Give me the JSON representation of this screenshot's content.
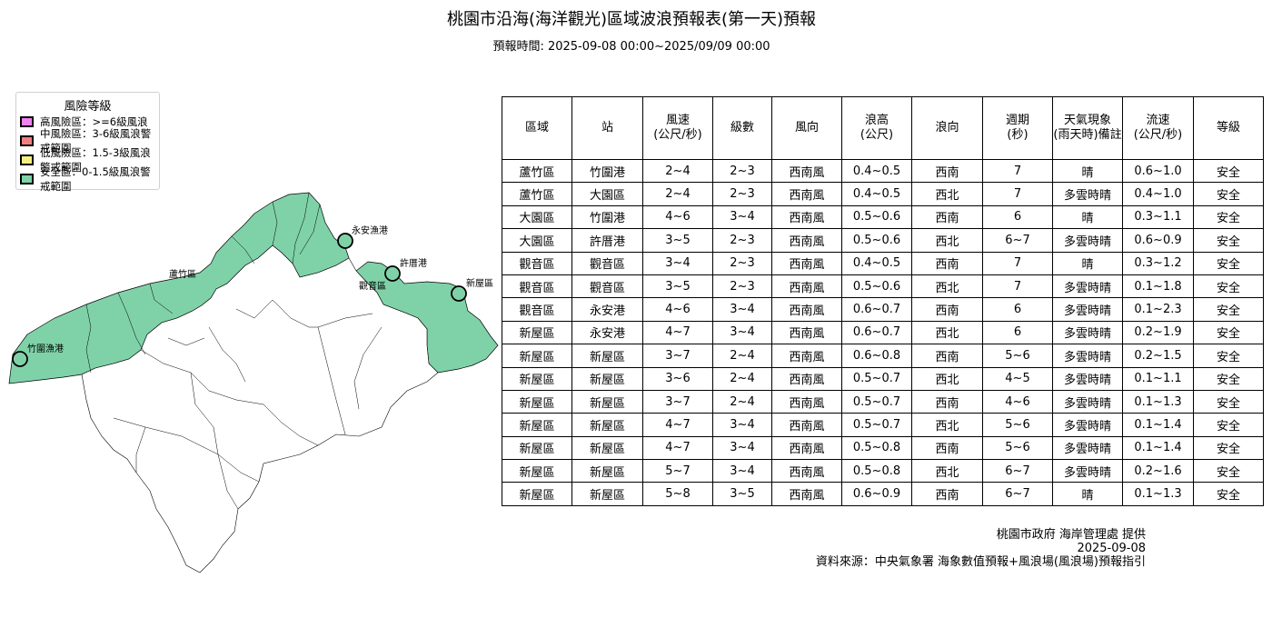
{
  "title": "桃園市沿海(海洋觀光)區域波浪預報表(第一天)預報",
  "subtitle": "預報時間: 2025-09-08 00:00~2025/09/09 00:00",
  "legend": {
    "title": "風險等級",
    "items": [
      {
        "label": "高風險區：>=6級風浪",
        "color": "#ee82ee"
      },
      {
        "label": "中風險區：3-6級風浪警戒範圍",
        "color": "#f08080"
      },
      {
        "label": "低風險區：1.5-3級風浪警戒範圍",
        "color": "#f5ef82"
      },
      {
        "label": "安全區：0-1.5級風浪警戒範圍",
        "color": "#7fd2a8"
      }
    ]
  },
  "map": {
    "region_fill": "#7fd2a8",
    "labels": [
      "竹圍漁港",
      "永安漁港",
      "許厝港",
      "新屋區",
      "觀音區",
      "蘆竹區"
    ]
  },
  "table": {
    "headers": [
      "區域",
      "站",
      "風速\n(公尺/秒)",
      "級數",
      "風向",
      "浪高\n(公尺)",
      "浪向",
      "週期\n(秒)",
      "天氣現象\n(雨天時)備註",
      "流速\n(公尺/秒)",
      "等級"
    ],
    "rows": [
      [
        "蘆竹區",
        "竹圍港",
        "2~4",
        "2~3",
        "西南風",
        "0.4~0.5",
        "西南",
        "7",
        "晴",
        "0.6~1.0",
        "安全"
      ],
      [
        "蘆竹區",
        "大園區",
        "2~4",
        "2~3",
        "西南風",
        "0.4~0.5",
        "西北",
        "7",
        "多雲時晴",
        "0.4~1.0",
        "安全"
      ],
      [
        "大園區",
        "竹圍港",
        "4~6",
        "3~4",
        "西南風",
        "0.5~0.6",
        "西南",
        "6",
        "晴",
        "0.3~1.1",
        "安全"
      ],
      [
        "大園區",
        "許厝港",
        "3~5",
        "2~3",
        "西南風",
        "0.5~0.6",
        "西北",
        "6~7",
        "多雲時晴",
        "0.6~0.9",
        "安全"
      ],
      [
        "觀音區",
        "觀音區",
        "3~4",
        "2~3",
        "西南風",
        "0.4~0.5",
        "西南",
        "7",
        "晴",
        "0.3~1.2",
        "安全"
      ],
      [
        "觀音區",
        "觀音區",
        "3~5",
        "2~3",
        "西南風",
        "0.5~0.6",
        "西北",
        "7",
        "多雲時晴",
        "0.1~1.8",
        "安全"
      ],
      [
        "觀音區",
        "永安港",
        "4~6",
        "3~4",
        "西南風",
        "0.6~0.7",
        "西南",
        "6",
        "多雲時晴",
        "0.1~2.3",
        "安全"
      ],
      [
        "新屋區",
        "永安港",
        "4~7",
        "3~4",
        "西南風",
        "0.6~0.7",
        "西北",
        "6",
        "多雲時晴",
        "0.2~1.9",
        "安全"
      ],
      [
        "新屋區",
        "新屋區",
        "3~7",
        "2~4",
        "西南風",
        "0.6~0.8",
        "西南",
        "5~6",
        "多雲時晴",
        "0.2~1.5",
        "安全"
      ],
      [
        "新屋區",
        "新屋區",
        "3~6",
        "2~4",
        "西南風",
        "0.5~0.7",
        "西北",
        "4~5",
        "多雲時晴",
        "0.1~1.1",
        "安全"
      ],
      [
        "新屋區",
        "新屋區",
        "3~7",
        "2~4",
        "西南風",
        "0.5~0.7",
        "西南",
        "4~6",
        "多雲時晴",
        "0.1~1.3",
        "安全"
      ],
      [
        "新屋區",
        "新屋區",
        "4~7",
        "3~4",
        "西南風",
        "0.5~0.7",
        "西北",
        "5~6",
        "多雲時晴",
        "0.1~1.4",
        "安全"
      ],
      [
        "新屋區",
        "新屋區",
        "4~7",
        "3~4",
        "西南風",
        "0.5~0.8",
        "西南",
        "5~6",
        "多雲時晴",
        "0.1~1.4",
        "安全"
      ],
      [
        "新屋區",
        "新屋區",
        "5~7",
        "3~4",
        "西南風",
        "0.5~0.8",
        "西北",
        "6~7",
        "多雲時晴",
        "0.2~1.6",
        "安全"
      ],
      [
        "新屋區",
        "新屋區",
        "5~8",
        "3~5",
        "西南風",
        "0.6~0.9",
        "西南",
        "6~7",
        "晴",
        "0.1~1.3",
        "安全"
      ]
    ]
  },
  "footer": {
    "line1": "桃園市政府 海岸管理處 提供",
    "line2": "2025-09-08",
    "line3": "資料來源：中央氣象署 海象數值預報+風浪場(風浪場)預報指引"
  }
}
